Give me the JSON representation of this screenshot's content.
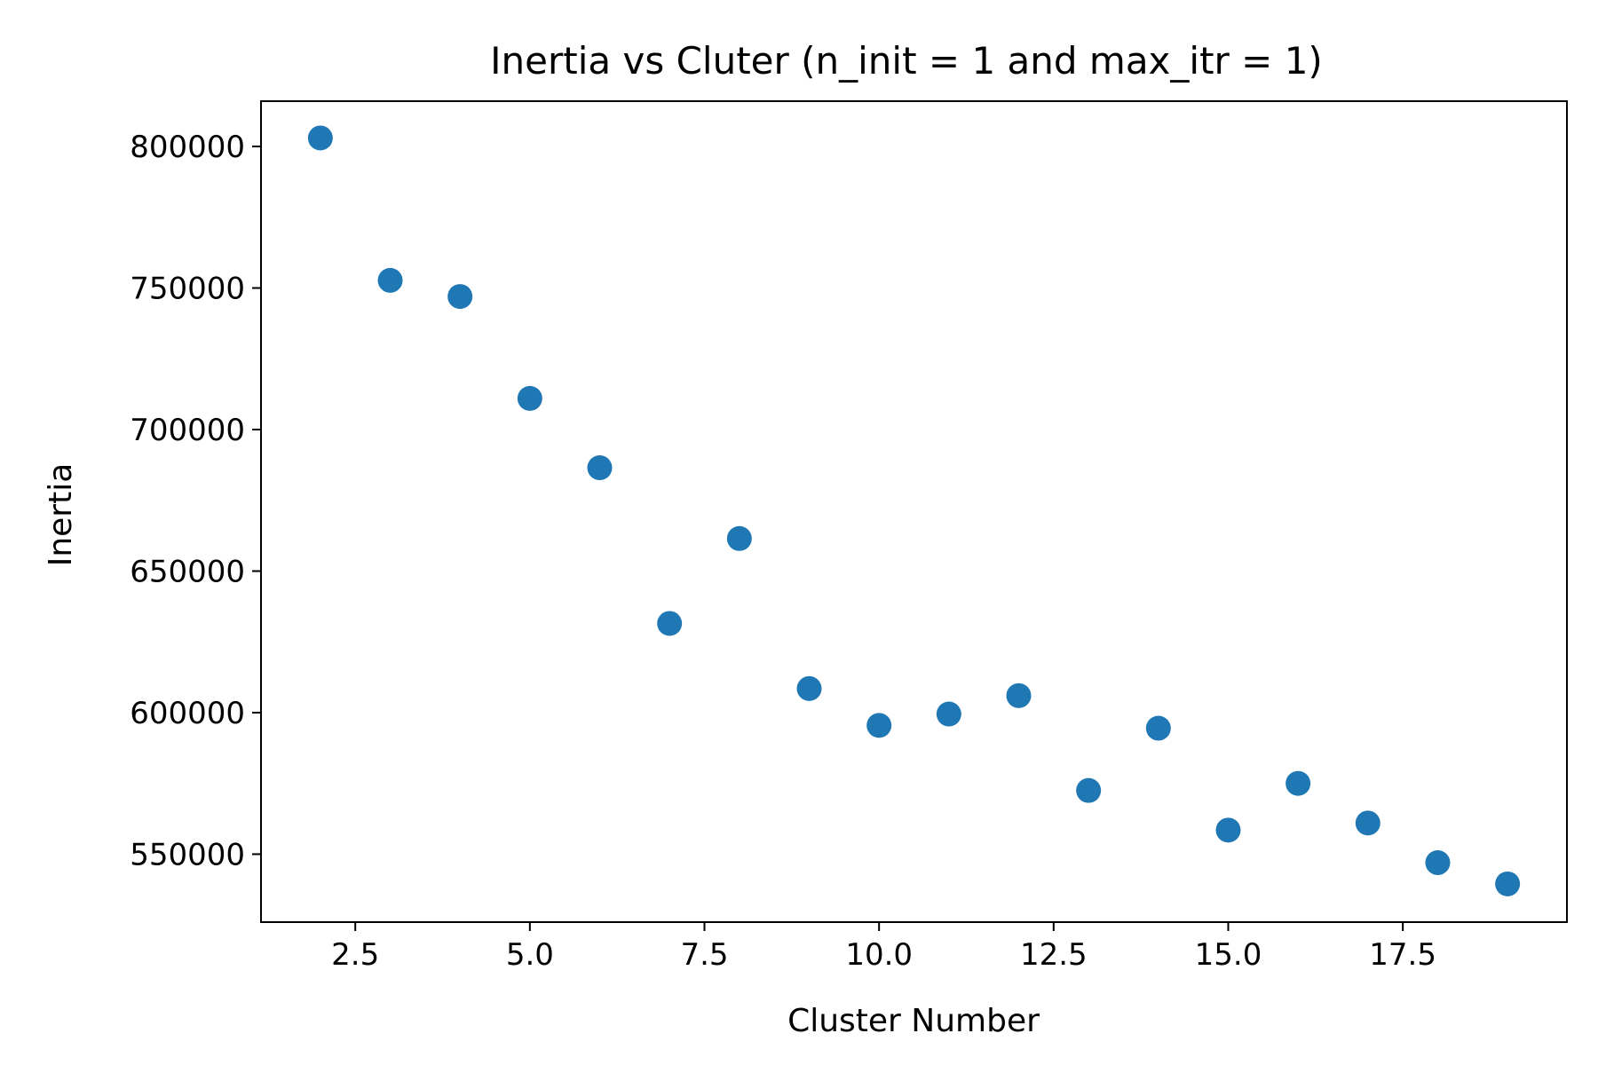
{
  "chart_data": {
    "type": "scatter",
    "title": "Inertia vs Cluter (n_init = 1 and max_itr = 1)",
    "xlabel": "Cluster Number",
    "ylabel": "Inertia",
    "xlim": [
      1.15,
      19.85
    ],
    "ylim": [
      526000,
      816000
    ],
    "xticks": [
      2.5,
      5.0,
      7.5,
      10.0,
      12.5,
      15.0,
      17.5
    ],
    "xtick_labels": [
      "2.5",
      "5.0",
      "7.5",
      "10.0",
      "12.5",
      "15.0",
      "17.5"
    ],
    "yticks": [
      550000,
      600000,
      650000,
      700000,
      750000,
      800000
    ],
    "ytick_labels": [
      "550000",
      "600000",
      "650000",
      "700000",
      "750000",
      "800000"
    ],
    "grid": false,
    "color": "#1f77b4",
    "x": [
      2,
      3,
      4,
      5,
      6,
      7,
      8,
      9,
      10,
      11,
      12,
      13,
      14,
      15,
      16,
      17,
      18,
      19
    ],
    "y": [
      803000,
      752700,
      747000,
      711000,
      686500,
      631500,
      661500,
      608500,
      595500,
      599500,
      606000,
      572500,
      594500,
      558500,
      575000,
      561000,
      547000,
      539500
    ]
  }
}
